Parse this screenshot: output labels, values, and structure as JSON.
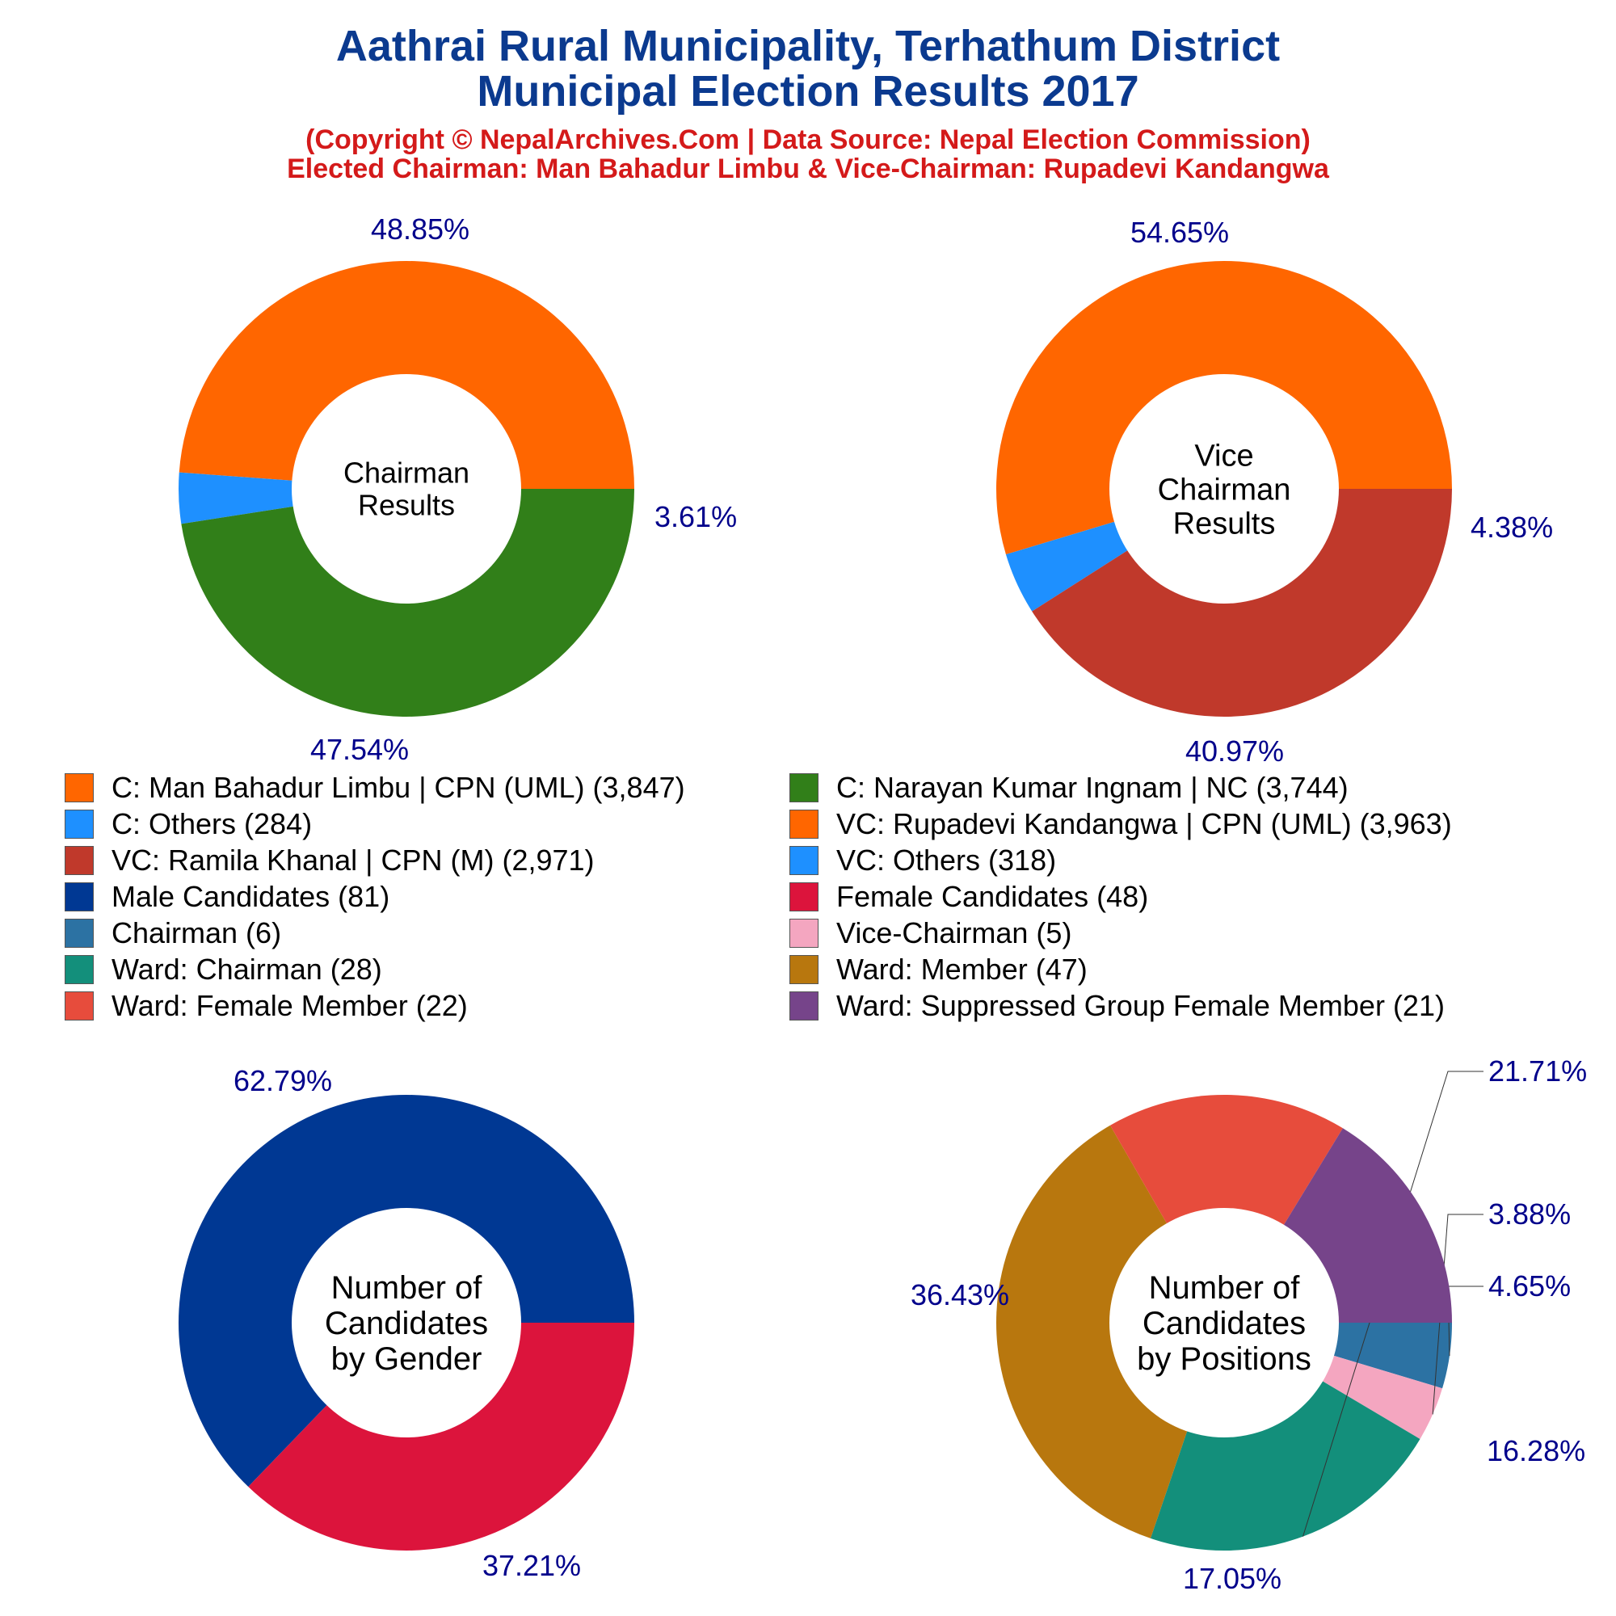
{
  "header": {
    "title_line1": "Aathrai Rural Municipality, Terhathum District",
    "title_line2": "Municipal Election Results 2017",
    "subtitle_line1": "(Copyright © NepalArchives.Com | Data Source: Nepal Election Commission)",
    "subtitle_line2": "Elected Chairman: Man Bahadur Limbu & Vice-Chairman: Rupadevi Kandangwa"
  },
  "colors": {
    "title": "#0b3a8f",
    "subtitle": "#d41a1a",
    "percent_label": "#00008b"
  },
  "chart_data": [
    {
      "type": "pie",
      "center_label": [
        "Chairman",
        "Results"
      ],
      "slices": [
        {
          "name": "C: Man Bahadur Limbu | CPN (UML)",
          "value": 3847,
          "percent": "48.85%",
          "color": "#ff6600"
        },
        {
          "name": "C: Others",
          "value": 284,
          "percent": "3.61%",
          "color": "#1e90ff"
        },
        {
          "name": "C: Narayan Kumar Ingnam | NC",
          "value": 3744,
          "percent": "47.54%",
          "color": "#317f19"
        }
      ]
    },
    {
      "type": "pie",
      "center_label": [
        "Vice",
        "Chairman",
        "Results"
      ],
      "slices": [
        {
          "name": "VC: Rupadevi Kandangwa | CPN (UML)",
          "value": 3963,
          "percent": "54.65%",
          "color": "#ff6600"
        },
        {
          "name": "VC: Others",
          "value": 318,
          "percent": "4.38%",
          "color": "#1e90ff"
        },
        {
          "name": "VC: Ramila Khanal | CPN (M)",
          "value": 2971,
          "percent": "40.97%",
          "color": "#c0392b"
        }
      ]
    },
    {
      "type": "pie",
      "center_label": [
        "Number of",
        "Candidates",
        "by Gender"
      ],
      "slices": [
        {
          "name": "Male Candidates",
          "value": 81,
          "percent": "62.79%",
          "color": "#003893"
        },
        {
          "name": "Female Candidates",
          "value": 48,
          "percent": "37.21%",
          "color": "#dc143c"
        }
      ]
    },
    {
      "type": "pie",
      "center_label": [
        "Number of",
        "Candidates",
        "by Positions"
      ],
      "slices": [
        {
          "name": "Chairman",
          "value": 6,
          "percent": "4.65%",
          "color": "#2c72a3"
        },
        {
          "name": "Vice-Chairman",
          "value": 5,
          "percent": "3.88%",
          "color": "#f4a6c0"
        },
        {
          "name": "Ward: Chairman",
          "value": 28,
          "percent": "21.71%",
          "color": "#138f7b"
        },
        {
          "name": "Ward: Member",
          "value": 47,
          "percent": "36.43%",
          "color": "#b8770e"
        },
        {
          "name": "Ward: Female Member",
          "value": 22,
          "percent": "17.05%",
          "color": "#e74c3c"
        },
        {
          "name": "Ward: Suppressed Group Female Member",
          "value": 21,
          "percent": "16.28%",
          "color": "#76448a"
        }
      ]
    }
  ],
  "legend": {
    "left": [
      {
        "label": "C: Man Bahadur Limbu | CPN (UML) (3,847)",
        "color": "#ff6600"
      },
      {
        "label": "C: Others (284)",
        "color": "#1e90ff"
      },
      {
        "label": "VC: Ramila Khanal | CPN (M) (2,971)",
        "color": "#c0392b"
      },
      {
        "label": "Male Candidates (81)",
        "color": "#003893"
      },
      {
        "label": "Chairman (6)",
        "color": "#2c72a3"
      },
      {
        "label": "Ward: Chairman (28)",
        "color": "#138f7b"
      },
      {
        "label": "Ward: Female Member (22)",
        "color": "#e74c3c"
      }
    ],
    "right": [
      {
        "label": "C: Narayan Kumar Ingnam | NC (3,744)",
        "color": "#317f19"
      },
      {
        "label": "VC: Rupadevi Kandangwa | CPN (UML) (3,963)",
        "color": "#ff6600"
      },
      {
        "label": "VC: Others (318)",
        "color": "#1e90ff"
      },
      {
        "label": "Female Candidates (48)",
        "color": "#dc143c"
      },
      {
        "label": "Vice-Chairman (5)",
        "color": "#f4a6c0"
      },
      {
        "label": "Ward: Member (47)",
        "color": "#b8770e"
      },
      {
        "label": "Ward: Suppressed Group Female Member (21)",
        "color": "#76448a"
      }
    ]
  }
}
